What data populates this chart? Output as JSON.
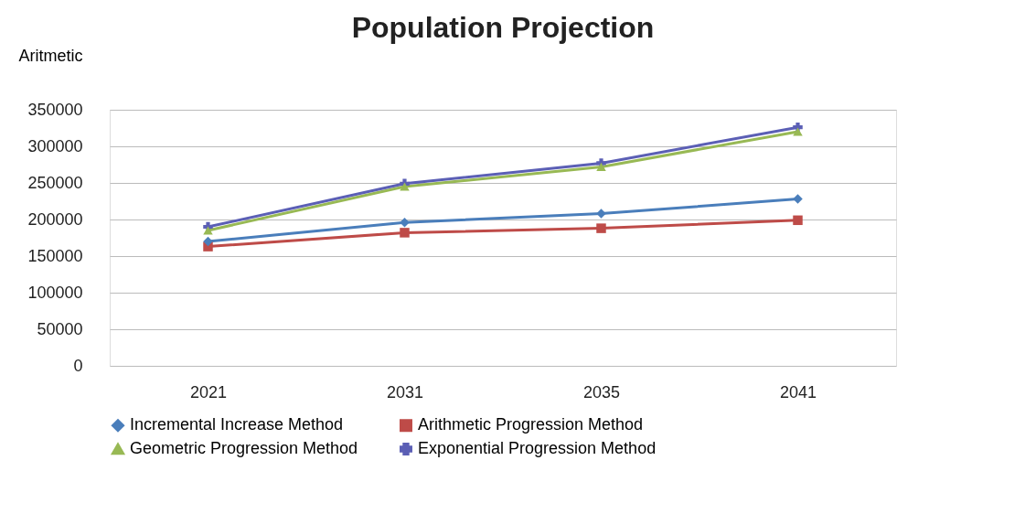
{
  "chart_data": {
    "type": "line",
    "title": "Population Projection",
    "ylabel": "Aritmetic",
    "categories": [
      "2021",
      "2031",
      "2035",
      "2041"
    ],
    "series": [
      {
        "name": "Incremental Increase Method",
        "color": "#4a7ebb",
        "marker": "diamond",
        "values": [
          170000,
          196000,
          208000,
          228000
        ]
      },
      {
        "name": "Arithmetic Progression Method",
        "color": "#be4b48",
        "marker": "square",
        "values": [
          163000,
          182000,
          188000,
          199000
        ]
      },
      {
        "name": "Geometric Progression Method",
        "color": "#98b954",
        "marker": "triangle",
        "values": [
          185000,
          245000,
          272000,
          320000
        ]
      },
      {
        "name": "Exponential  Progression Method",
        "color": "#5b5fb5",
        "marker": "cross",
        "values": [
          190000,
          249000,
          277000,
          326000
        ]
      }
    ],
    "ylim": [
      0,
      350000
    ],
    "yticks": [
      0,
      50000,
      100000,
      150000,
      200000,
      250000,
      300000,
      350000
    ],
    "grid": "y",
    "legend": "bottom",
    "line_style": "solid"
  }
}
